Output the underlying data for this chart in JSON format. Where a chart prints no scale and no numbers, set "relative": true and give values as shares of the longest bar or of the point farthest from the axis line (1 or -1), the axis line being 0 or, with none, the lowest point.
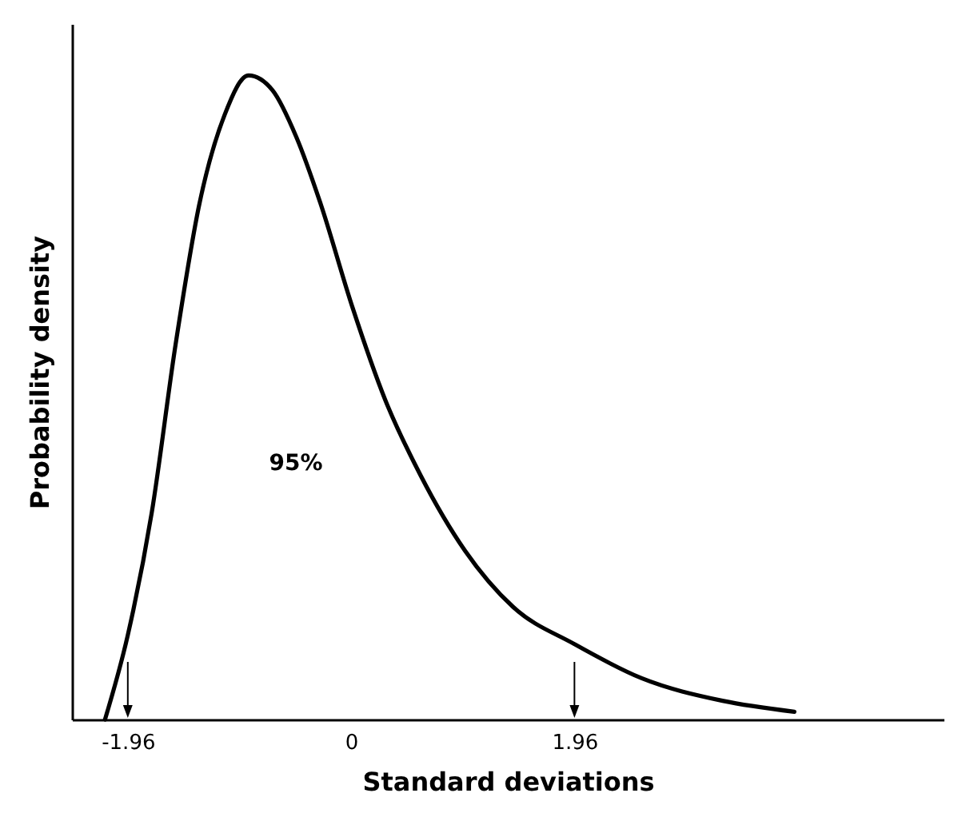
{
  "chart_data": {
    "type": "line",
    "xlabel": "Standard deviations",
    "ylabel": "Probability density",
    "relative": true,
    "tick_labels": "x",
    "marker": "none",
    "line_style": "solid",
    "x": [
      -2.16,
      -1.96,
      -1.75,
      -1.54,
      -1.33,
      -1.11,
      -0.9,
      -0.69,
      -0.48,
      -0.27,
      0.01,
      0.3,
      0.61,
      1.0,
      1.42,
      1.96,
      2.55,
      3.26,
      3.89
    ],
    "xlim": [
      -2.45,
      5.2
    ],
    "xticks": [
      -1.96,
      0,
      1.96
    ],
    "series": [
      {
        "color": "#000000",
        "values": [
          0,
          0.131,
          0.321,
          0.583,
          0.802,
          0.939,
          1,
          0.977,
          0.904,
          0.802,
          0.641,
          0.496,
          0.379,
          0.262,
          0.175,
          0.117,
          0.064,
          0.029,
          0.012
        ]
      }
    ],
    "annotations": [
      "95%"
    ]
  }
}
